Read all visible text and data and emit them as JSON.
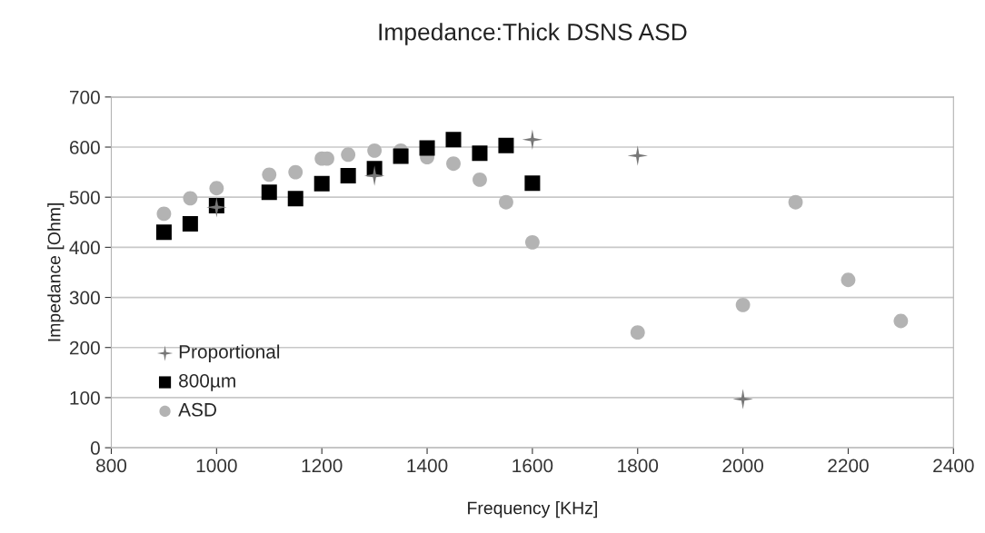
{
  "chart_data": {
    "type": "scatter",
    "title": "Impedance:Thick DSNS ASD",
    "xlabel": "Frequency [KHz]",
    "ylabel": "Impedance [Ohm]",
    "xlim": [
      800,
      2400
    ],
    "xticks": [
      800,
      1000,
      1200,
      1400,
      1600,
      1800,
      2000,
      2200,
      2400
    ],
    "ylim": [
      0,
      700
    ],
    "yticks": [
      0,
      100,
      200,
      300,
      400,
      500,
      600,
      700
    ],
    "grid": "y",
    "legend": "bottom left",
    "series": [
      {
        "name": "Proportional",
        "color": "#777777",
        "marker": "star",
        "x": [
          1000,
          1300,
          1600,
          1800,
          2000
        ],
        "values": [
          480,
          543,
          615,
          583,
          97
        ]
      },
      {
        "name": "800µm",
        "color": "#000000",
        "marker": "square",
        "x": [
          900,
          950,
          1000,
          1100,
          1150,
          1200,
          1250,
          1300,
          1350,
          1400,
          1450,
          1500,
          1550,
          1600
        ],
        "values": [
          430,
          447,
          483,
          510,
          497,
          527,
          543,
          557,
          582,
          598,
          615,
          588,
          603,
          528
        ]
      },
      {
        "name": "ASD",
        "color": "#b3b3b3",
        "marker": "circle",
        "x": [
          900,
          950,
          1000,
          1100,
          1150,
          1200,
          1210,
          1250,
          1300,
          1350,
          1400,
          1450,
          1500,
          1550,
          1600,
          1800,
          2000,
          2100,
          2200,
          2300
        ],
        "values": [
          467,
          498,
          518,
          545,
          550,
          577,
          577,
          585,
          593,
          593,
          580,
          567,
          535,
          490,
          410,
          230,
          285,
          490,
          335,
          253
        ]
      }
    ]
  }
}
